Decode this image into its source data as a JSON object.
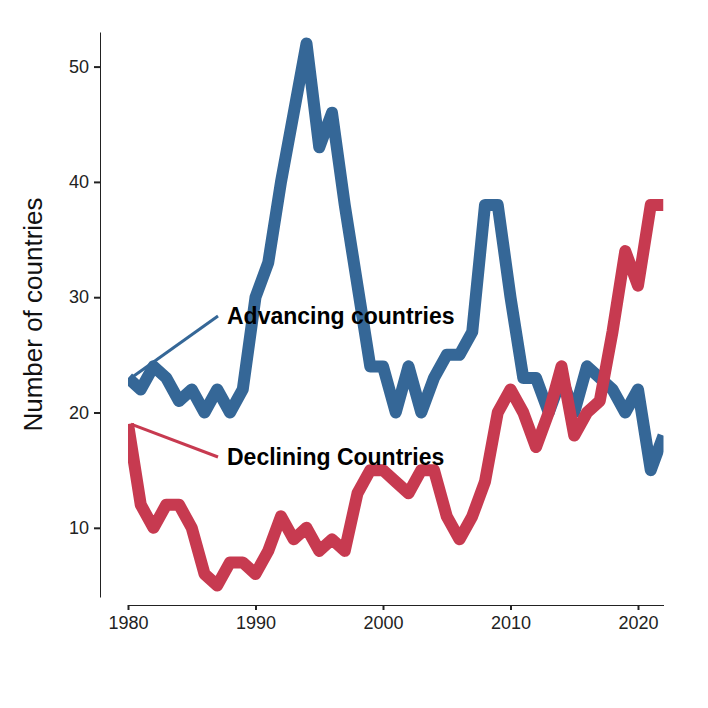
{
  "chart_data": {
    "type": "line",
    "y_label": "Number of countries",
    "x": [
      1980,
      1981,
      1982,
      1983,
      1984,
      1985,
      1986,
      1987,
      1988,
      1989,
      1990,
      1991,
      1992,
      1993,
      1994,
      1995,
      1996,
      1997,
      1998,
      1999,
      2000,
      2001,
      2002,
      2003,
      2004,
      2005,
      2006,
      2007,
      2008,
      2009,
      2010,
      2011,
      2012,
      2013,
      2014,
      2015,
      2016,
      2017,
      2018,
      2019,
      2020,
      2021,
      2022
    ],
    "series": [
      {
        "name": "Advancing countries",
        "color": "#356797",
        "values": [
          23,
          22,
          24,
          23,
          21,
          22,
          20,
          22,
          20,
          22,
          30,
          33,
          40,
          46,
          52,
          43,
          46,
          38,
          31,
          24,
          24,
          20,
          24,
          20,
          23,
          25,
          25,
          27,
          38,
          38,
          30,
          23,
          23,
          20,
          23,
          20,
          24,
          23,
          22,
          20,
          22,
          15,
          18
        ]
      },
      {
        "name": "Declining Countries",
        "color": "#c73a50",
        "values": [
          19,
          12,
          10,
          12,
          12,
          10,
          6,
          5,
          7,
          7,
          6,
          8,
          11,
          9,
          10,
          8,
          9,
          8,
          13,
          15,
          15,
          14,
          13,
          15,
          15,
          11,
          9,
          11,
          14,
          20,
          22,
          20,
          17,
          20,
          24,
          18,
          20,
          21,
          27,
          34,
          31,
          38,
          38
        ]
      }
    ],
    "xlim": [
      1980,
      2022
    ],
    "ylim": [
      4,
      53
    ],
    "xticks": [
      1980,
      1990,
      2000,
      2010,
      2020
    ],
    "yticks": [
      10,
      20,
      30,
      40,
      50
    ],
    "grid": false
  }
}
